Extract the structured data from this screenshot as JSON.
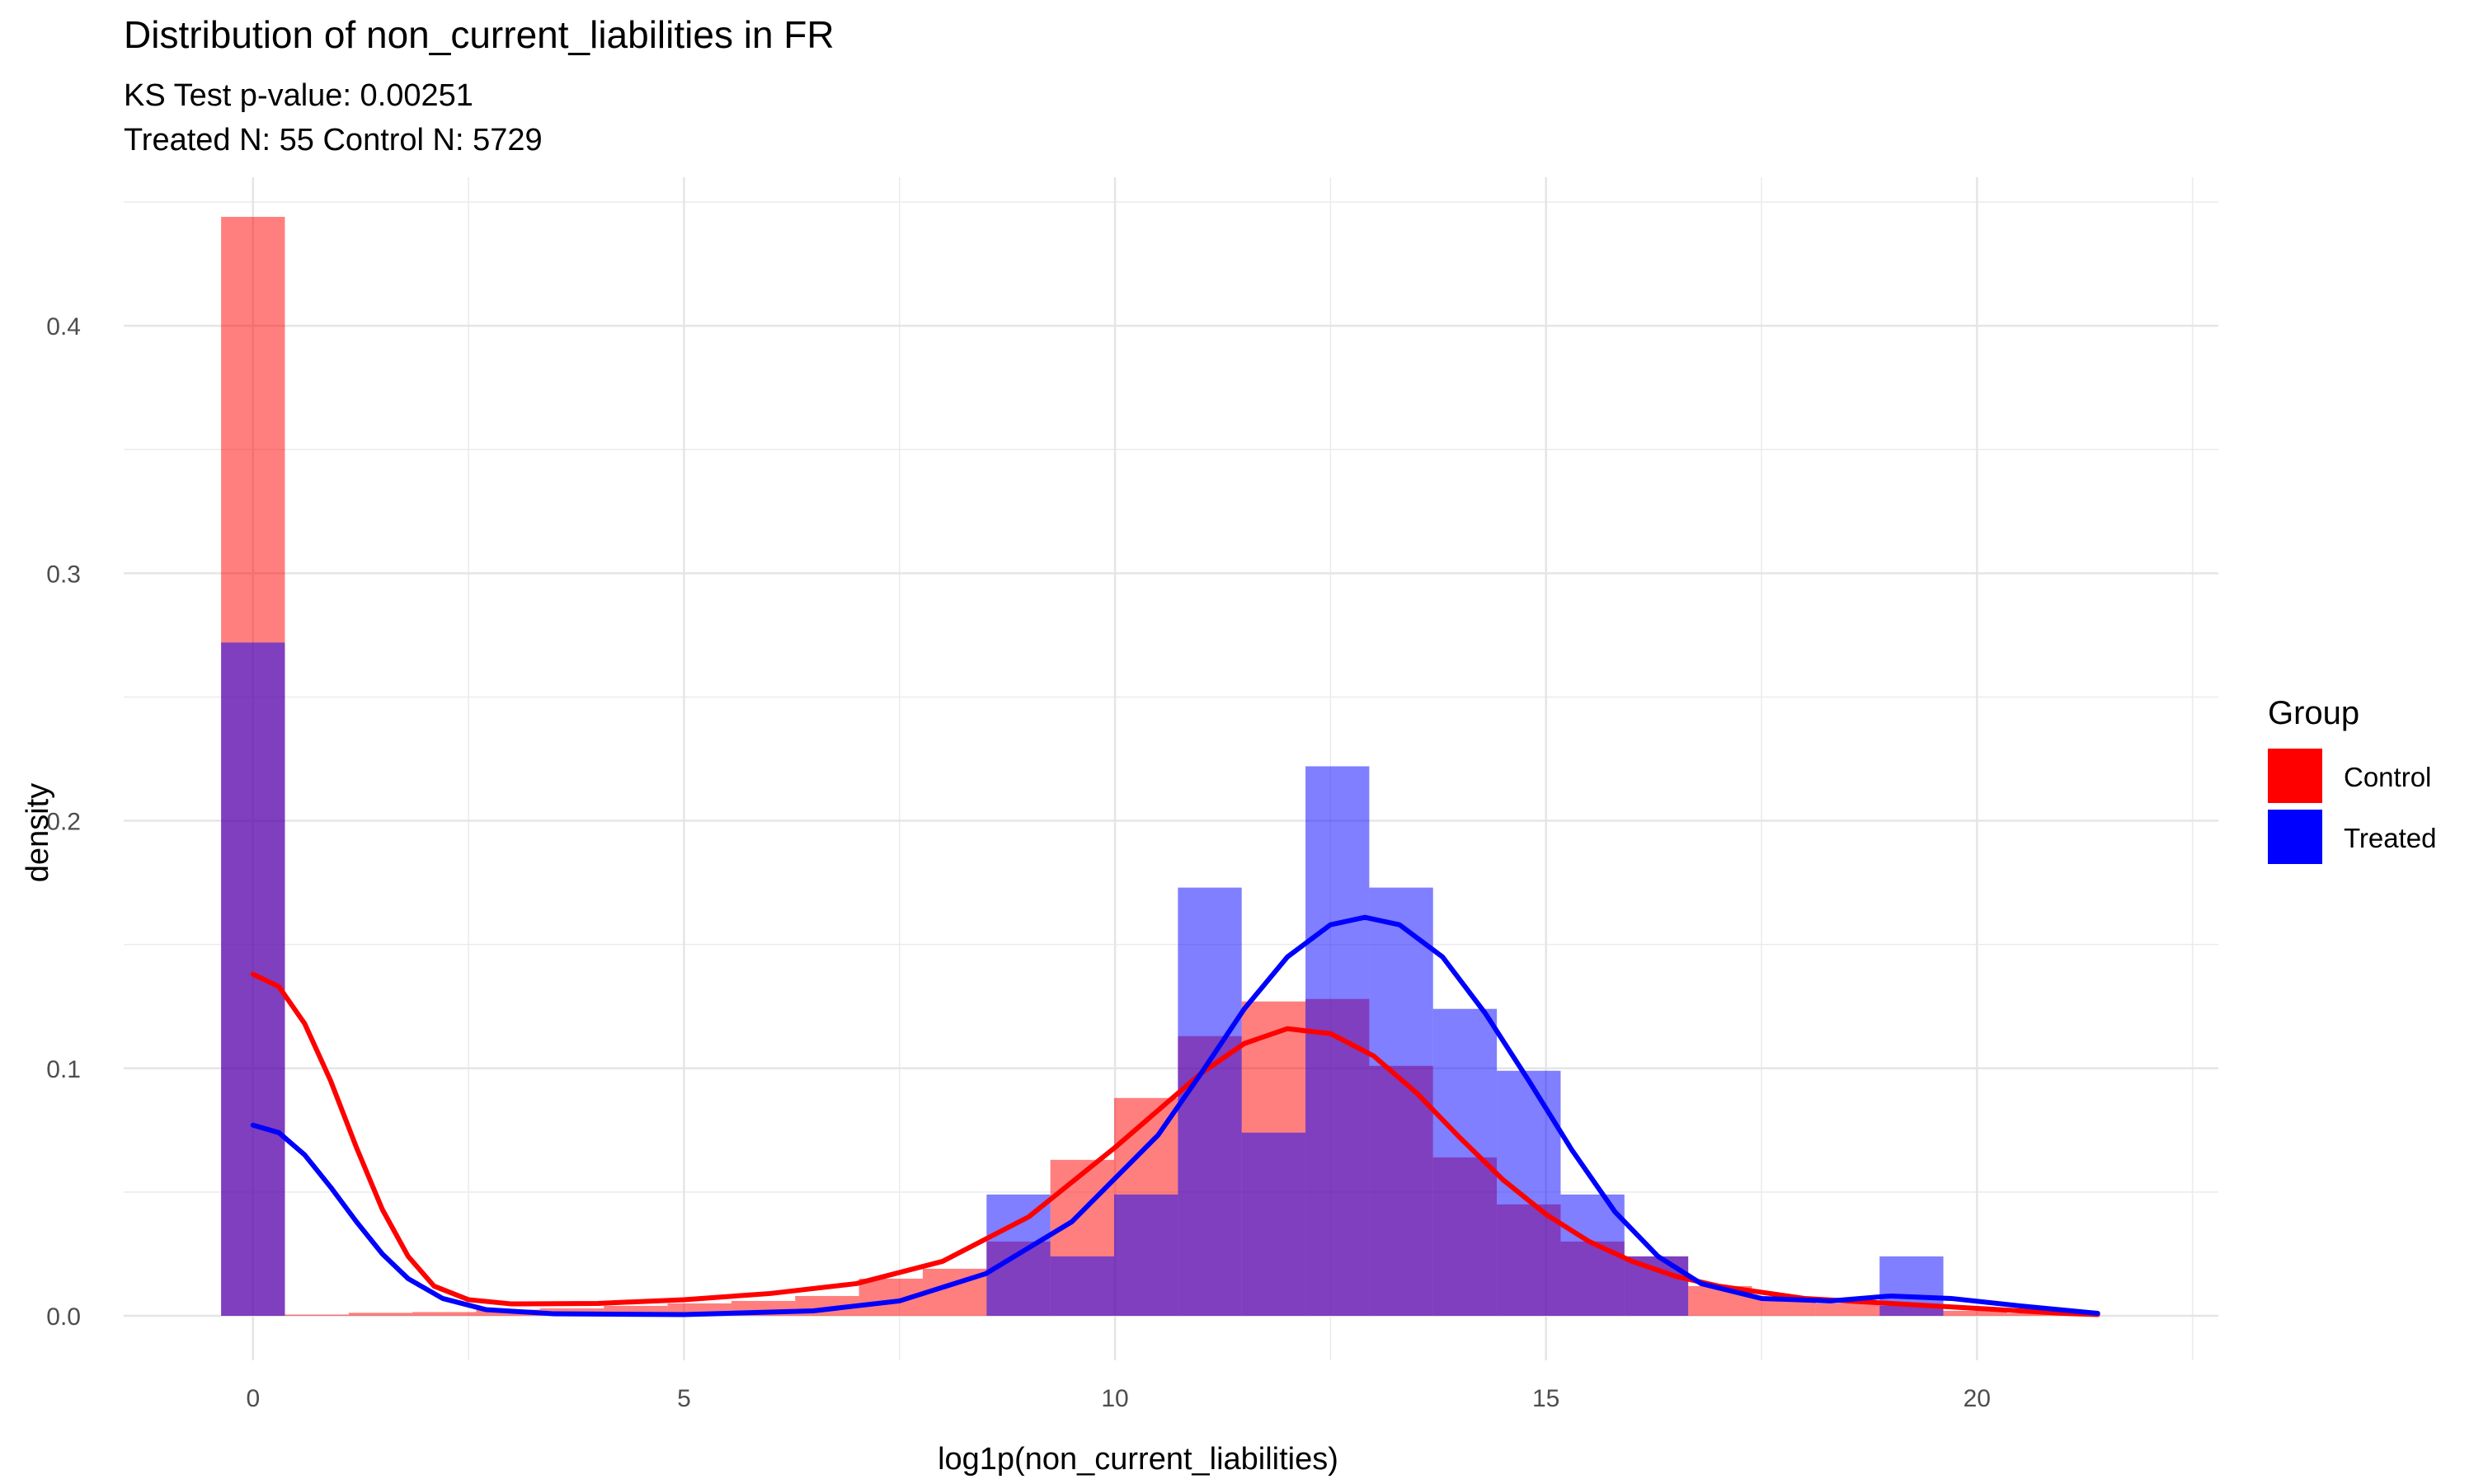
{
  "title": "Distribution of non_current_liabilities in FR",
  "subtitle_line1": "KS Test p-value: 0.00251",
  "subtitle_line2": "Treated N: 55 Control N: 5729",
  "chart_data": {
    "type": "bar",
    "subtype": "overlaid histogram with density curves",
    "xlabel": "log1p(non_current_liabilities)",
    "ylabel": "density",
    "xlim": [
      -1.5,
      22.8
    ],
    "ylim": [
      -0.018,
      0.46
    ],
    "x_ticks": [
      0,
      5,
      10,
      15,
      20
    ],
    "y_ticks": [
      0.0,
      0.1,
      0.2,
      0.3,
      0.4
    ],
    "y_tick_labels": [
      "0.0",
      "0.1",
      "0.2",
      "0.3",
      "0.4"
    ],
    "grid": true,
    "bin_width": 0.74,
    "legend": {
      "title": "Group",
      "position": "right"
    },
    "series": [
      {
        "name": "Control",
        "color": "#FF0000",
        "bars": [
          {
            "x": 0.0,
            "y": 0.444
          },
          {
            "x": 0.74,
            "y": 0.0005
          },
          {
            "x": 1.48,
            "y": 0.0012
          },
          {
            "x": 2.22,
            "y": 0.0015
          },
          {
            "x": 2.96,
            "y": 0.0025
          },
          {
            "x": 3.7,
            "y": 0.003
          },
          {
            "x": 4.44,
            "y": 0.004
          },
          {
            "x": 5.18,
            "y": 0.005
          },
          {
            "x": 5.92,
            "y": 0.006
          },
          {
            "x": 6.66,
            "y": 0.008
          },
          {
            "x": 7.4,
            "y": 0.015
          },
          {
            "x": 8.14,
            "y": 0.019
          },
          {
            "x": 8.88,
            "y": 0.03
          },
          {
            "x": 9.62,
            "y": 0.063
          },
          {
            "x": 10.36,
            "y": 0.088
          },
          {
            "x": 11.1,
            "y": 0.113
          },
          {
            "x": 11.84,
            "y": 0.127
          },
          {
            "x": 12.58,
            "y": 0.128
          },
          {
            "x": 13.32,
            "y": 0.101
          },
          {
            "x": 14.06,
            "y": 0.064
          },
          {
            "x": 14.8,
            "y": 0.045
          },
          {
            "x": 15.54,
            "y": 0.03
          },
          {
            "x": 16.28,
            "y": 0.024
          },
          {
            "x": 17.02,
            "y": 0.012
          },
          {
            "x": 17.76,
            "y": 0.007
          },
          {
            "x": 18.5,
            "y": 0.005
          },
          {
            "x": 19.24,
            "y": 0.004
          },
          {
            "x": 19.98,
            "y": 0.002
          },
          {
            "x": 20.72,
            "y": 0.001
          }
        ],
        "density": [
          [
            0.0,
            0.138
          ],
          [
            0.3,
            0.133
          ],
          [
            0.6,
            0.118
          ],
          [
            0.9,
            0.095
          ],
          [
            1.2,
            0.068
          ],
          [
            1.5,
            0.043
          ],
          [
            1.8,
            0.024
          ],
          [
            2.1,
            0.012
          ],
          [
            2.5,
            0.0065
          ],
          [
            3.0,
            0.0048
          ],
          [
            4.0,
            0.005
          ],
          [
            5.0,
            0.0065
          ],
          [
            6.0,
            0.009
          ],
          [
            7.0,
            0.013
          ],
          [
            8.0,
            0.022
          ],
          [
            9.0,
            0.04
          ],
          [
            10.0,
            0.068
          ],
          [
            11.0,
            0.098
          ],
          [
            11.5,
            0.11
          ],
          [
            12.0,
            0.116
          ],
          [
            12.5,
            0.114
          ],
          [
            13.0,
            0.105
          ],
          [
            13.5,
            0.09
          ],
          [
            14.0,
            0.072
          ],
          [
            14.5,
            0.055
          ],
          [
            15.0,
            0.041
          ],
          [
            15.5,
            0.03
          ],
          [
            16.0,
            0.022
          ],
          [
            16.5,
            0.016
          ],
          [
            17.0,
            0.012
          ],
          [
            18.0,
            0.007
          ],
          [
            19.0,
            0.005
          ],
          [
            20.0,
            0.003
          ],
          [
            21.0,
            0.001
          ],
          [
            21.4,
            0.0005
          ]
        ]
      },
      {
        "name": "Treated",
        "color": "#0000FF",
        "bars": [
          {
            "x": 0.0,
            "y": 0.272
          },
          {
            "x": 8.88,
            "y": 0.049
          },
          {
            "x": 9.62,
            "y": 0.024
          },
          {
            "x": 10.36,
            "y": 0.049
          },
          {
            "x": 11.1,
            "y": 0.173
          },
          {
            "x": 11.84,
            "y": 0.074
          },
          {
            "x": 12.58,
            "y": 0.222
          },
          {
            "x": 13.32,
            "y": 0.173
          },
          {
            "x": 14.06,
            "y": 0.124
          },
          {
            "x": 14.8,
            "y": 0.099
          },
          {
            "x": 15.54,
            "y": 0.049
          },
          {
            "x": 16.28,
            "y": 0.024
          },
          {
            "x": 19.24,
            "y": 0.024
          }
        ],
        "density": [
          [
            0.0,
            0.077
          ],
          [
            0.3,
            0.074
          ],
          [
            0.6,
            0.065
          ],
          [
            0.9,
            0.052
          ],
          [
            1.2,
            0.038
          ],
          [
            1.5,
            0.025
          ],
          [
            1.8,
            0.015
          ],
          [
            2.2,
            0.007
          ],
          [
            2.7,
            0.0025
          ],
          [
            3.5,
            0.0008
          ],
          [
            5.0,
            0.0005
          ],
          [
            6.5,
            0.002
          ],
          [
            7.5,
            0.006
          ],
          [
            8.5,
            0.017
          ],
          [
            9.5,
            0.038
          ],
          [
            10.5,
            0.073
          ],
          [
            11.0,
            0.098
          ],
          [
            11.5,
            0.124
          ],
          [
            12.0,
            0.145
          ],
          [
            12.5,
            0.158
          ],
          [
            12.9,
            0.161
          ],
          [
            13.3,
            0.158
          ],
          [
            13.8,
            0.145
          ],
          [
            14.3,
            0.122
          ],
          [
            14.8,
            0.095
          ],
          [
            15.3,
            0.067
          ],
          [
            15.8,
            0.042
          ],
          [
            16.3,
            0.024
          ],
          [
            16.8,
            0.013
          ],
          [
            17.5,
            0.007
          ],
          [
            18.3,
            0.006
          ],
          [
            19.0,
            0.008
          ],
          [
            19.7,
            0.007
          ],
          [
            20.5,
            0.004
          ],
          [
            21.4,
            0.001
          ]
        ]
      }
    ]
  }
}
